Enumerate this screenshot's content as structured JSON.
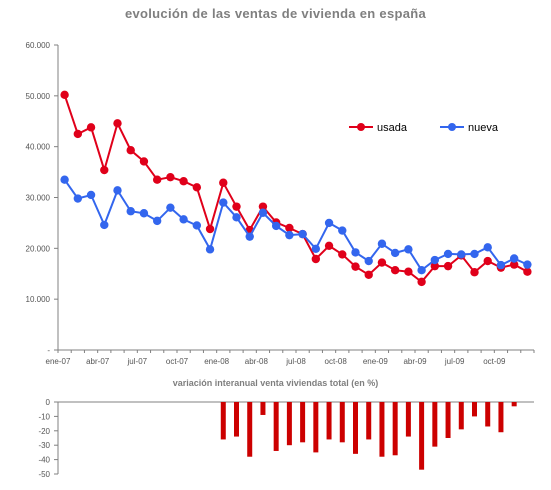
{
  "chart_data": [
    {
      "type": "line",
      "title": "evolución de las ventas de vivienda en españa",
      "ylim": [
        0,
        60000
      ],
      "yticks": [
        "-",
        "10.000",
        "20.000",
        "30.000",
        "40.000",
        "50.000",
        "60.000"
      ],
      "x": [
        "ene-07",
        "feb-07",
        "mar-07",
        "abr-07",
        "may-07",
        "jun-07",
        "jul-07",
        "ago-07",
        "sep-07",
        "oct-07",
        "nov-07",
        "dic-07",
        "ene-08",
        "feb-08",
        "mar-08",
        "abr-08",
        "may-08",
        "jun-08",
        "jul-08",
        "ago-08",
        "sep-08",
        "oct-08",
        "nov-08",
        "dic-08",
        "ene-09",
        "feb-09",
        "mar-09",
        "abr-09",
        "may-09",
        "jun-09",
        "jul-09",
        "ago-09",
        "sep-09",
        "oct-09",
        "nov-09",
        "dic-09"
      ],
      "xtick_labels": [
        "ene-07",
        "abr-07",
        "jul-07",
        "oct-07",
        "ene-08",
        "abr-08",
        "jul-08",
        "oct-08",
        "ene-09",
        "abr-09",
        "jul-09",
        "oct-09"
      ],
      "legend_position": "right",
      "series": [
        {
          "name": "usada",
          "color": "#e0001a",
          "values": [
            50200,
            42500,
            43800,
            35400,
            44600,
            39300,
            37100,
            33500,
            34000,
            33200,
            32000,
            23800,
            32900,
            28200,
            23600,
            28200,
            25100,
            24000,
            22800,
            17900,
            20500,
            18800,
            16400,
            14800,
            17200,
            15700,
            15400,
            13400,
            16500,
            16500,
            18600,
            15300,
            17500,
            16200,
            16800,
            15400
          ]
        },
        {
          "name": "nueva",
          "color": "#3366ee",
          "values": [
            33500,
            29800,
            30500,
            24600,
            31400,
            27300,
            26900,
            25400,
            28000,
            25700,
            24500,
            19800,
            29000,
            26100,
            22300,
            27000,
            24400,
            22600,
            22800,
            19900,
            25000,
            23500,
            19200,
            17500,
            20900,
            19100,
            19800,
            15700,
            17700,
            18900,
            18800,
            18900,
            20200,
            16700,
            18000,
            16800
          ]
        }
      ]
    },
    {
      "type": "bar",
      "title": "variación interanual venta viviendas total (en %)",
      "ylim": [
        -50,
        0
      ],
      "yticks": [
        "0",
        "-10",
        "-20",
        "-30",
        "-40",
        "-50"
      ],
      "color": "#cc0000",
      "values": [
        null,
        null,
        null,
        null,
        null,
        null,
        null,
        null,
        null,
        null,
        null,
        null,
        -26,
        -24,
        -38,
        -9,
        -34,
        -30,
        -28,
        -35,
        -26,
        -28,
        -36,
        -26,
        -38,
        -37,
        -24,
        -47,
        -31,
        -25,
        -19,
        -10,
        -17,
        -21,
        -3,
        null
      ]
    }
  ]
}
